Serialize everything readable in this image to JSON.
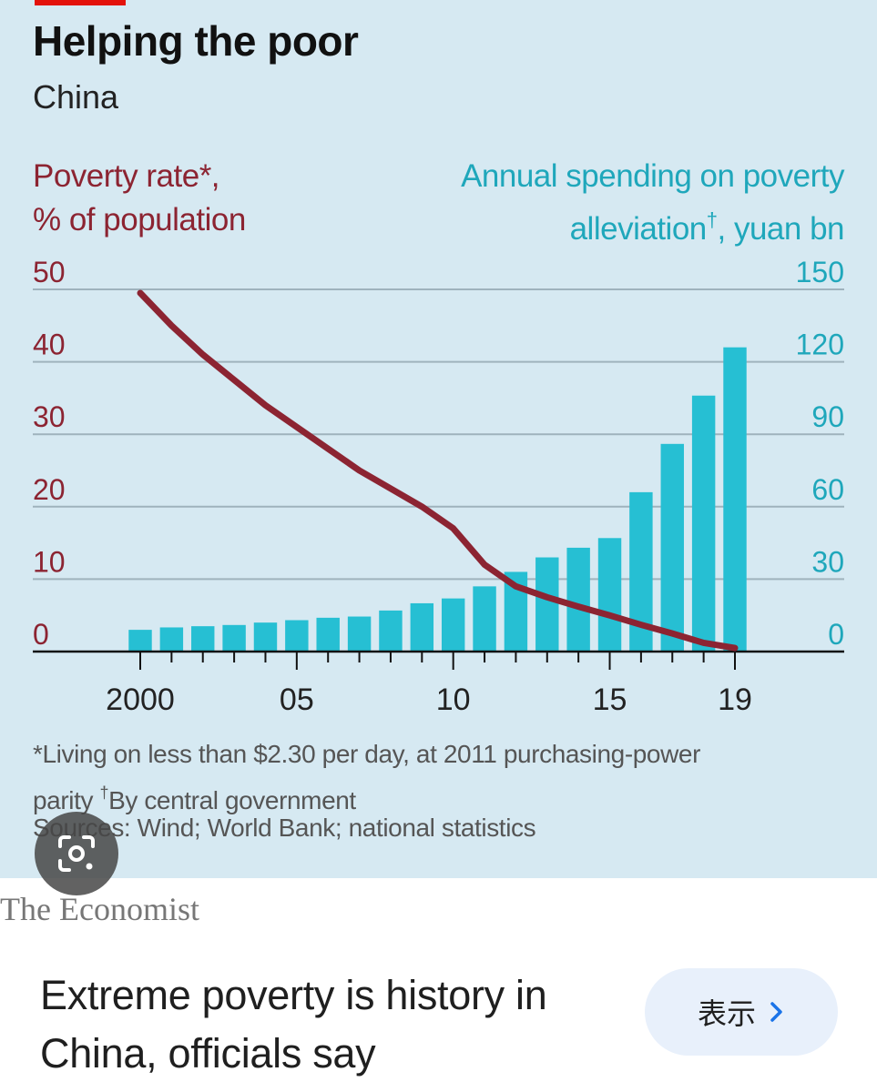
{
  "chart": {
    "title": "Helping the poor",
    "subtitle": "China",
    "left_axis_title": [
      "Poverty rate*,",
      "% of population"
    ],
    "right_axis_title": [
      "Annual spending on poverty",
      "alleviation",
      "†",
      ", yuan bn"
    ],
    "footnote_line1": "*Living on less than $2.30 per day, at 2011 purchasing-power",
    "footnote_line2_a": "parity ",
    "footnote_dagger": "†",
    "footnote_line2_b": "By central government",
    "sources": "Sources: Wind; World Bank; national statistics",
    "colors": {
      "line": "#8c2432",
      "bars": "#26bfd3",
      "right_axis": "#1fa7bb",
      "left_axis": "#8c2432",
      "background": "#d6e9f2"
    }
  },
  "chart_data": {
    "type": "bar",
    "x": [
      2000,
      2001,
      2002,
      2003,
      2004,
      2005,
      2006,
      2007,
      2008,
      2009,
      2010,
      2011,
      2012,
      2013,
      2014,
      2015,
      2016,
      2017,
      2018,
      2019
    ],
    "x_tick_labels": [
      "2000",
      "05",
      "10",
      "15",
      "19"
    ],
    "x_tick_values": [
      2000,
      2005,
      2010,
      2015,
      2019
    ],
    "series": [
      {
        "name": "Annual spending on poverty alleviation†, yuan bn",
        "type": "bar",
        "axis": "right",
        "values": [
          9,
          10,
          10.5,
          11,
          12,
          13,
          14,
          14.5,
          17,
          20,
          22,
          27,
          33,
          39,
          43,
          47,
          66,
          86,
          106,
          126
        ]
      },
      {
        "name": "Poverty rate*, % of population",
        "type": "line",
        "axis": "left",
        "values": [
          49.5,
          45,
          41,
          37.5,
          34,
          31,
          28,
          25,
          22.5,
          20,
          17,
          12,
          9,
          7.5,
          6.2,
          5,
          3.7,
          2.5,
          1.2,
          0.5
        ]
      }
    ],
    "left_axis": {
      "ylim": [
        0,
        50
      ],
      "ticks": [
        "0",
        "10",
        "20",
        "30",
        "40",
        "50"
      ]
    },
    "right_axis": {
      "ylim": [
        0,
        150
      ],
      "ticks": [
        "0",
        "30",
        "60",
        "90",
        "120",
        "150"
      ]
    },
    "grid": true
  },
  "source_brand": "The Economist",
  "headline": "Extreme poverty is history in China, officials say",
  "view_button": {
    "label": "表示",
    "icon": "chevron-right-icon"
  },
  "lens_button": {
    "icon": "lens-icon"
  }
}
